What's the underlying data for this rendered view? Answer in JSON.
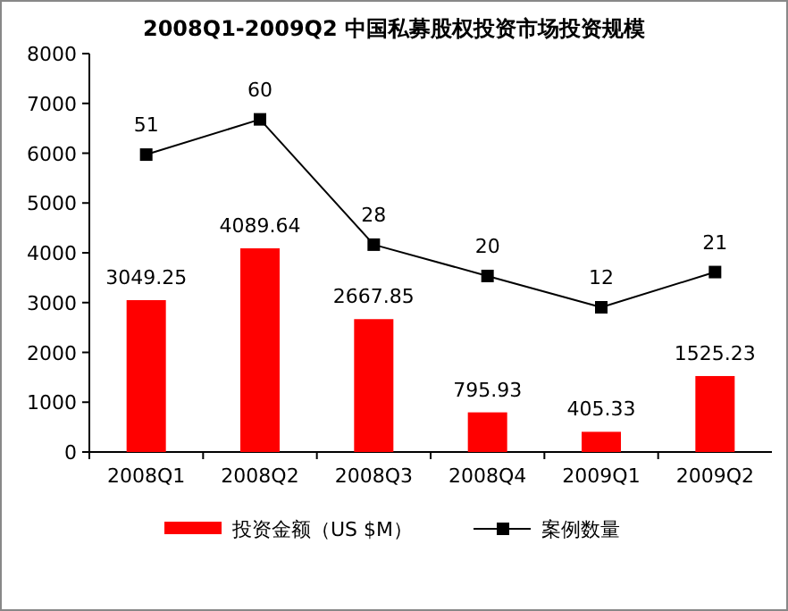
{
  "chart_data": {
    "type": "bar",
    "title": "2008Q1-2009Q2 中国私募股权投资市场投资规模",
    "categories": [
      "2008Q1",
      "2008Q2",
      "2008Q3",
      "2008Q4",
      "2009Q1",
      "2009Q2"
    ],
    "series": [
      {
        "name": "投资金额（US $M）",
        "color": "#ff0000",
        "values": [
          3049.25,
          4089.64,
          2667.85,
          795.93,
          405.33,
          1525.23
        ]
      },
      {
        "name": "案例数量",
        "type": "line",
        "axis": "y2",
        "color": "#000000",
        "values": [
          51,
          60,
          28,
          20,
          12,
          21
        ]
      }
    ],
    "ylim": [
      0,
      8000
    ],
    "yticks": [
      0,
      1000,
      2000,
      3000,
      4000,
      5000,
      6000,
      7000,
      8000
    ],
    "tick_labels": "xy",
    "marker": "square",
    "line_style": "solid",
    "data_labels": true,
    "legend": "bottom",
    "grid": false
  }
}
